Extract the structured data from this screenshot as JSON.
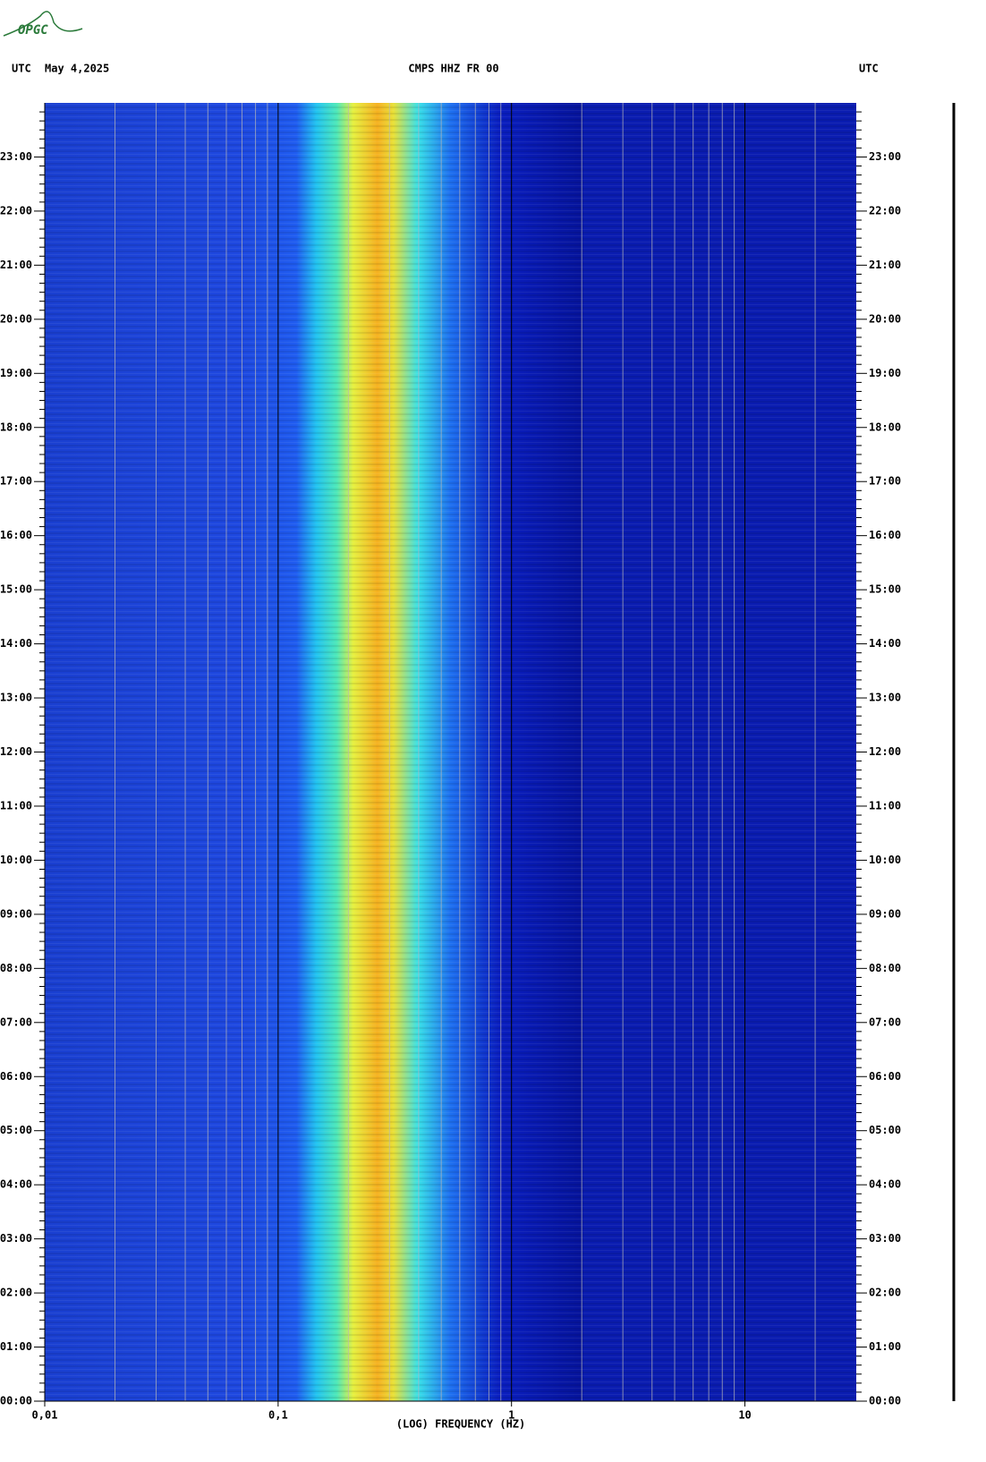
{
  "logo": "OPGC",
  "chart_data": {
    "type": "spectrogram",
    "title": "CMPS HHZ FR 00",
    "date": "May 4,2025",
    "left_timezone": "UTC",
    "right_timezone": "UTC",
    "xlabel": "(LOG) FREQUENCY (HZ)",
    "xlim": [
      0.01,
      30
    ],
    "log_x": true,
    "xticks": [
      {
        "value": 0.01,
        "label": "0,01"
      },
      {
        "value": 0.1,
        "label": "0,1"
      },
      1,
      10
    ],
    "ylim": [
      0,
      24
    ],
    "yticks": [
      {
        "value": 0,
        "label": "00:00"
      },
      {
        "value": 1,
        "label": "01:00"
      },
      {
        "value": 2,
        "label": "02:00"
      },
      {
        "value": 3,
        "label": "03:00"
      },
      {
        "value": 4,
        "label": "04:00"
      },
      {
        "value": 5,
        "label": "05:00"
      },
      {
        "value": 6,
        "label": "06:00"
      },
      {
        "value": 7,
        "label": "07:00"
      },
      {
        "value": 8,
        "label": "08:00"
      },
      {
        "value": 9,
        "label": "09:00"
      },
      {
        "value": 10,
        "label": "10:00"
      },
      {
        "value": 11,
        "label": "11:00"
      },
      {
        "value": 12,
        "label": "12:00"
      },
      {
        "value": 13,
        "label": "13:00"
      },
      {
        "value": 14,
        "label": "14:00"
      },
      {
        "value": 15,
        "label": "15:00"
      },
      {
        "value": 16,
        "label": "16:00"
      },
      {
        "value": 17,
        "label": "17:00"
      },
      {
        "value": 18,
        "label": "18:00"
      },
      {
        "value": 19,
        "label": "19:00"
      },
      {
        "value": 20,
        "label": "20:00"
      },
      {
        "value": 21,
        "label": "21:00"
      },
      {
        "value": 22,
        "label": "22:00"
      },
      {
        "value": 23,
        "label": "23:00"
      }
    ],
    "grid": true
  }
}
